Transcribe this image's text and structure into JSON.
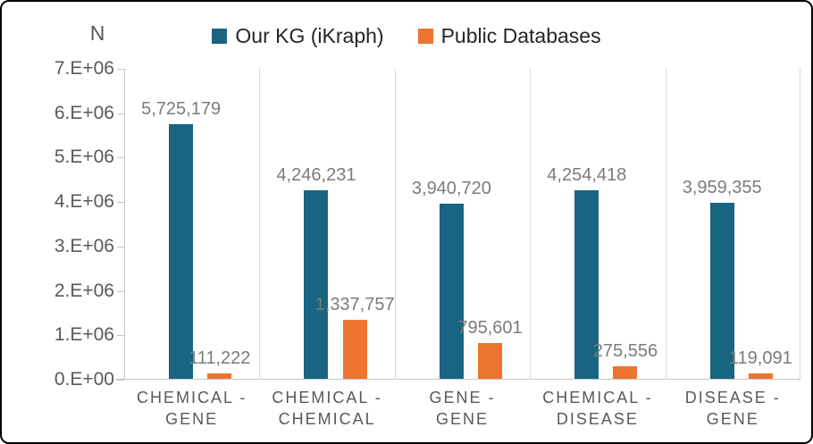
{
  "axis_title": "N",
  "legend": {
    "items": [
      {
        "label": "Our KG (iKraph)",
        "color": "#186481"
      },
      {
        "label": "Public Databases",
        "color": "#ED7431"
      }
    ]
  },
  "chart_data": {
    "type": "bar",
    "title": "",
    "xlabel": "",
    "ylabel": "N",
    "ylim": [
      0,
      7000000
    ],
    "ytick_interval": 1000000,
    "ytick_labels": [
      "0.E+00",
      "1.E+06",
      "2.E+06",
      "3.E+06",
      "4.E+06",
      "5.E+06",
      "6.E+06",
      "7.E+06"
    ],
    "categories": [
      "CHEMICAL - GENE",
      "CHEMICAL - CHEMICAL",
      "GENE - GENE",
      "CHEMICAL - DISEASE",
      "DISEASE - GENE"
    ],
    "category_label_lines": [
      [
        "CHEMICAL -",
        "GENE"
      ],
      [
        "CHEMICAL -",
        "CHEMICAL"
      ],
      [
        "GENE -",
        "GENE"
      ],
      [
        "CHEMICAL -",
        "DISEASE"
      ],
      [
        "DISEASE -",
        "GENE"
      ]
    ],
    "series": [
      {
        "name": "Our KG (iKraph)",
        "color": "#186481",
        "values": [
          5725179,
          4246231,
          3940720,
          4254418,
          3959355
        ],
        "data_labels": [
          "5,725,179",
          "4,246,231",
          "3,940,720",
          "4,254,418",
          "3,959,355"
        ]
      },
      {
        "name": "Public Databases",
        "color": "#ED7431",
        "values": [
          111222,
          1337757,
          795601,
          275556,
          119091
        ],
        "data_labels": [
          "111,222",
          "1,337,757",
          "795,601",
          "275,556",
          "119,091"
        ]
      }
    ],
    "grid": "vertical-category-separators",
    "legend_position": "top-center",
    "colors": {
      "data_label": "#7b7b7b",
      "tick_label": "#595959",
      "category_label": "#595959",
      "legend_text": "#262626",
      "gridline": "#d9d9d9",
      "axis_line": "#c6c6c6"
    }
  }
}
